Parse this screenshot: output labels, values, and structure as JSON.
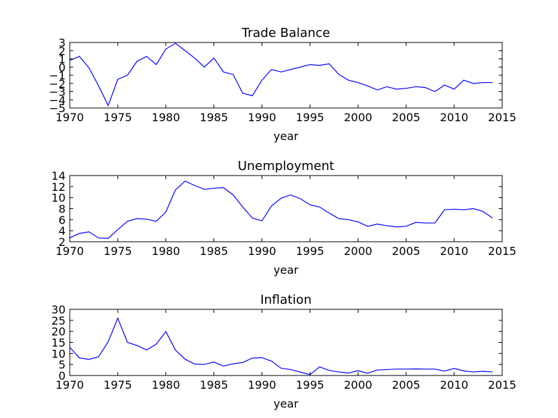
{
  "chart_data": [
    {
      "type": "line",
      "title": "Trade Balance",
      "xlabel": "year",
      "ylabel": "",
      "xlim": [
        1970,
        2015
      ],
      "ylim": [
        -5,
        3
      ],
      "xticks": [
        1970,
        1975,
        1980,
        1985,
        1990,
        1995,
        2000,
        2005,
        2010,
        2015
      ],
      "yticks": [
        -5,
        -4,
        -3,
        -2,
        -1,
        0,
        1,
        2,
        3
      ],
      "ytick_labels": [
        "−5",
        "−4",
        "−3",
        "−2",
        "−1",
        "0",
        "1",
        "2",
        "3"
      ],
      "color": "#0000ff",
      "x": [
        1970,
        1971,
        1972,
        1973,
        1974,
        1975,
        1976,
        1977,
        1978,
        1979,
        1980,
        1981,
        1982,
        1983,
        1984,
        1985,
        1986,
        1987,
        1988,
        1989,
        1990,
        1991,
        1992,
        1993,
        1994,
        1995,
        1996,
        1997,
        1998,
        1999,
        2000,
        2001,
        2002,
        2003,
        2004,
        2005,
        2006,
        2007,
        2008,
        2009,
        2010,
        2011,
        2012,
        2013,
        2014
      ],
      "y": [
        0.8,
        1.3,
        -0.1,
        -2.3,
        -4.7,
        -1.5,
        -1.0,
        0.7,
        1.3,
        0.3,
        2.2,
        2.9,
        2.0,
        1.1,
        0.0,
        1.1,
        -0.6,
        -0.9,
        -3.2,
        -3.5,
        -1.6,
        -0.3,
        -0.6,
        -0.3,
        0.0,
        0.3,
        0.2,
        0.4,
        -0.9,
        -1.6,
        -1.9,
        -2.3,
        -2.8,
        -2.4,
        -2.7,
        -2.6,
        -2.4,
        -2.5,
        -3.0,
        -2.2,
        -2.7,
        -1.6,
        -2.0,
        -1.9,
        -1.9
      ]
    },
    {
      "type": "line",
      "title": "Unemployment",
      "xlabel": "year",
      "ylabel": "",
      "xlim": [
        1970,
        2015
      ],
      "ylim": [
        2,
        14
      ],
      "xticks": [
        1970,
        1975,
        1980,
        1985,
        1990,
        1995,
        2000,
        2005,
        2010,
        2015
      ],
      "yticks": [
        2,
        4,
        6,
        8,
        10,
        12,
        14
      ],
      "ytick_labels": [
        "2",
        "4",
        "6",
        "8",
        "10",
        "12",
        "14"
      ],
      "color": "#0000ff",
      "x": [
        1970,
        1971,
        1972,
        1973,
        1974,
        1975,
        1976,
        1977,
        1978,
        1979,
        1980,
        1981,
        1982,
        1983,
        1984,
        1985,
        1986,
        1987,
        1988,
        1989,
        1990,
        1991,
        1992,
        1993,
        1994,
        1995,
        1996,
        1997,
        1998,
        1999,
        2000,
        2001,
        2002,
        2003,
        2004,
        2005,
        2006,
        2007,
        2008,
        2009,
        2010,
        2011,
        2012,
        2013,
        2014
      ],
      "y": [
        2.7,
        3.5,
        3.8,
        2.7,
        2.6,
        4.2,
        5.7,
        6.2,
        6.1,
        5.7,
        7.4,
        11.4,
        13.0,
        12.2,
        11.5,
        11.7,
        11.8,
        10.5,
        8.3,
        6.3,
        5.8,
        8.5,
        9.9,
        10.5,
        9.8,
        8.7,
        8.3,
        7.2,
        6.2,
        6.0,
        5.6,
        4.8,
        5.2,
        4.9,
        4.7,
        4.8,
        5.5,
        5.4,
        5.4,
        7.8,
        7.9,
        7.8,
        8.0,
        7.5,
        6.3
      ]
    },
    {
      "type": "line",
      "title": "Inflation",
      "xlabel": "year",
      "ylabel": "",
      "xlim": [
        1970,
        2015
      ],
      "ylim": [
        0,
        30
      ],
      "xticks": [
        1970,
        1975,
        1980,
        1985,
        1990,
        1995,
        2000,
        2005,
        2010,
        2015
      ],
      "yticks": [
        0,
        5,
        10,
        15,
        20,
        25,
        30
      ],
      "ytick_labels": [
        "0",
        "5",
        "10",
        "15",
        "20",
        "25",
        "30"
      ],
      "color": "#0000ff",
      "x": [
        1970,
        1971,
        1972,
        1973,
        1974,
        1975,
        1976,
        1977,
        1978,
        1979,
        1980,
        1981,
        1982,
        1983,
        1984,
        1985,
        1986,
        1987,
        1988,
        1989,
        1990,
        1991,
        1992,
        1993,
        1994,
        1995,
        1996,
        1997,
        1998,
        1999,
        2000,
        2001,
        2002,
        2003,
        2004,
        2005,
        2006,
        2007,
        2008,
        2009,
        2010,
        2011,
        2012,
        2013,
        2014
      ],
      "y": [
        12.8,
        8.0,
        7.3,
        8.5,
        15.3,
        26.0,
        15.0,
        13.6,
        11.6,
        14.2,
        19.9,
        11.5,
        7.4,
        5.2,
        5.0,
        6.1,
        4.3,
        5.3,
        5.9,
        7.9,
        8.1,
        6.5,
        3.3,
        2.7,
        1.5,
        0.4,
        3.9,
        2.3,
        1.6,
        1.1,
        2.2,
        1.0,
        2.5,
        2.7,
        2.9,
        2.9,
        3.0,
        2.9,
        2.9,
        2.0,
        3.2,
        2.1,
        1.6,
        1.9,
        1.6
      ]
    }
  ]
}
